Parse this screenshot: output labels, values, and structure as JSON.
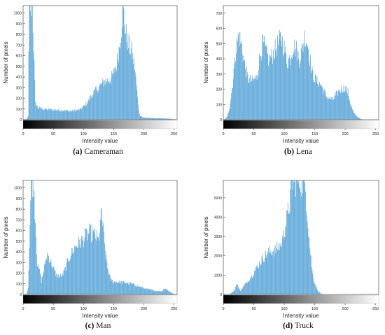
{
  "colors": {
    "bar": "#5ea7d9",
    "axis": "#333333",
    "grid": "#e6e6e6",
    "text": "#222222"
  },
  "chart_data": [
    {
      "type": "bar",
      "panel_id": "(a)",
      "caption": "Cameraman",
      "xlabel": "Intensity value",
      "ylabel": "Number of pixels",
      "xlim": [
        0,
        255
      ],
      "ylim": [
        0,
        1070
      ],
      "xticks": [
        0,
        50,
        100,
        150,
        200,
        250
      ],
      "yticks": [
        0,
        100,
        200,
        300,
        400,
        500,
        600,
        700,
        800,
        900,
        1000
      ],
      "colorbar": "black-to-white intensity gradient under x-axis",
      "histogram_anchors": {
        "x": [
          0,
          5,
          8,
          9,
          10,
          11,
          13,
          15,
          17,
          20,
          25,
          40,
          60,
          80,
          95,
          105,
          115,
          125,
          135,
          145,
          150,
          155,
          160,
          163,
          165,
          167,
          170,
          175,
          180,
          185,
          190,
          193,
          196,
          200,
          220,
          240,
          250,
          255
        ],
        "y": [
          0,
          5,
          30,
          600,
          1070,
          1070,
          1070,
          1070,
          700,
          150,
          110,
          95,
          90,
          80,
          95,
          150,
          240,
          300,
          360,
          380,
          430,
          520,
          700,
          870,
          1070,
          980,
          820,
          700,
          640,
          500,
          200,
          50,
          30,
          18,
          12,
          10,
          5,
          0
        ]
      }
    },
    {
      "type": "bar",
      "panel_id": "(b)",
      "caption": "Lena",
      "xlabel": "Intensity value",
      "ylabel": "Number of pixels",
      "xlim": [
        0,
        255
      ],
      "ylim": [
        0,
        750
      ],
      "xticks": [
        0,
        50,
        100,
        150,
        200,
        250
      ],
      "yticks": [
        0,
        100,
        200,
        300,
        400,
        500,
        600,
        700
      ],
      "colorbar": "black-to-white intensity gradient under x-axis",
      "histogram_anchors": {
        "x": [
          0,
          3,
          6,
          10,
          15,
          20,
          25,
          30,
          35,
          40,
          45,
          50,
          55,
          60,
          65,
          70,
          75,
          80,
          85,
          90,
          95,
          100,
          105,
          110,
          115,
          120,
          125,
          130,
          135,
          140,
          145,
          150,
          160,
          170,
          180,
          185,
          190,
          200,
          205,
          210,
          215,
          220,
          226,
          230,
          255
        ],
        "y": [
          0,
          5,
          20,
          80,
          240,
          450,
          560,
          480,
          360,
          270,
          255,
          260,
          280,
          420,
          510,
          440,
          390,
          420,
          460,
          500,
          540,
          470,
          380,
          410,
          490,
          460,
          400,
          470,
          560,
          470,
          320,
          270,
          230,
          150,
          130,
          160,
          190,
          210,
          180,
          90,
          40,
          20,
          5,
          0,
          0
        ]
      }
    },
    {
      "type": "bar",
      "panel_id": "(c)",
      "caption": "Man",
      "xlabel": "Intensity value",
      "ylabel": "Number of pixels",
      "xlim": [
        0,
        255
      ],
      "ylim": [
        0,
        1070
      ],
      "xticks": [
        0,
        50,
        100,
        150,
        200,
        250
      ],
      "yticks": [
        0,
        100,
        200,
        300,
        400,
        500,
        600,
        700,
        800,
        900,
        1000
      ],
      "colorbar": "black-to-white intensity gradient under x-axis",
      "histogram_anchors": {
        "x": [
          0,
          5,
          8,
          10,
          13,
          15,
          17,
          20,
          23,
          25,
          28,
          30,
          35,
          40,
          45,
          50,
          55,
          60,
          65,
          70,
          75,
          80,
          85,
          90,
          95,
          100,
          105,
          110,
          115,
          120,
          125,
          130,
          133,
          135,
          140,
          145,
          150,
          160,
          170,
          180,
          190,
          200,
          210,
          220,
          230,
          235,
          240,
          245,
          250,
          255
        ],
        "y": [
          0,
          5,
          60,
          450,
          1070,
          1070,
          1070,
          700,
          300,
          250,
          200,
          120,
          260,
          380,
          320,
          240,
          180,
          170,
          180,
          240,
          330,
          390,
          440,
          470,
          490,
          520,
          560,
          580,
          570,
          550,
          500,
          770,
          600,
          450,
          250,
          140,
          120,
          115,
          110,
          100,
          80,
          60,
          45,
          35,
          30,
          60,
          40,
          20,
          5,
          0
        ]
      }
    },
    {
      "type": "bar",
      "panel_id": "(d)",
      "caption": "Truck",
      "xlabel": "Intensity value",
      "ylabel": "Number of pixels",
      "xlim": [
        0,
        255
      ],
      "ylim": [
        0,
        5900
      ],
      "xticks": [
        0,
        50,
        100,
        150,
        200,
        250
      ],
      "yticks": [
        0,
        1000,
        2000,
        3000,
        4000,
        5000
      ],
      "colorbar": "black-to-white intensity gradient under x-axis",
      "histogram_anchors": {
        "x": [
          0,
          10,
          18,
          22,
          25,
          28,
          35,
          45,
          55,
          65,
          75,
          85,
          95,
          100,
          105,
          110,
          113,
          115,
          118,
          120,
          125,
          130,
          135,
          138,
          142,
          146,
          150,
          155,
          160,
          165,
          255
        ],
        "y": [
          0,
          20,
          200,
          600,
          300,
          200,
          500,
          900,
          1400,
          1900,
          2200,
          2300,
          2600,
          3300,
          4000,
          5000,
          5900,
          5900,
          5900,
          5900,
          5900,
          5900,
          5500,
          4200,
          2500,
          1200,
          600,
          200,
          50,
          0,
          0
        ]
      }
    }
  ]
}
